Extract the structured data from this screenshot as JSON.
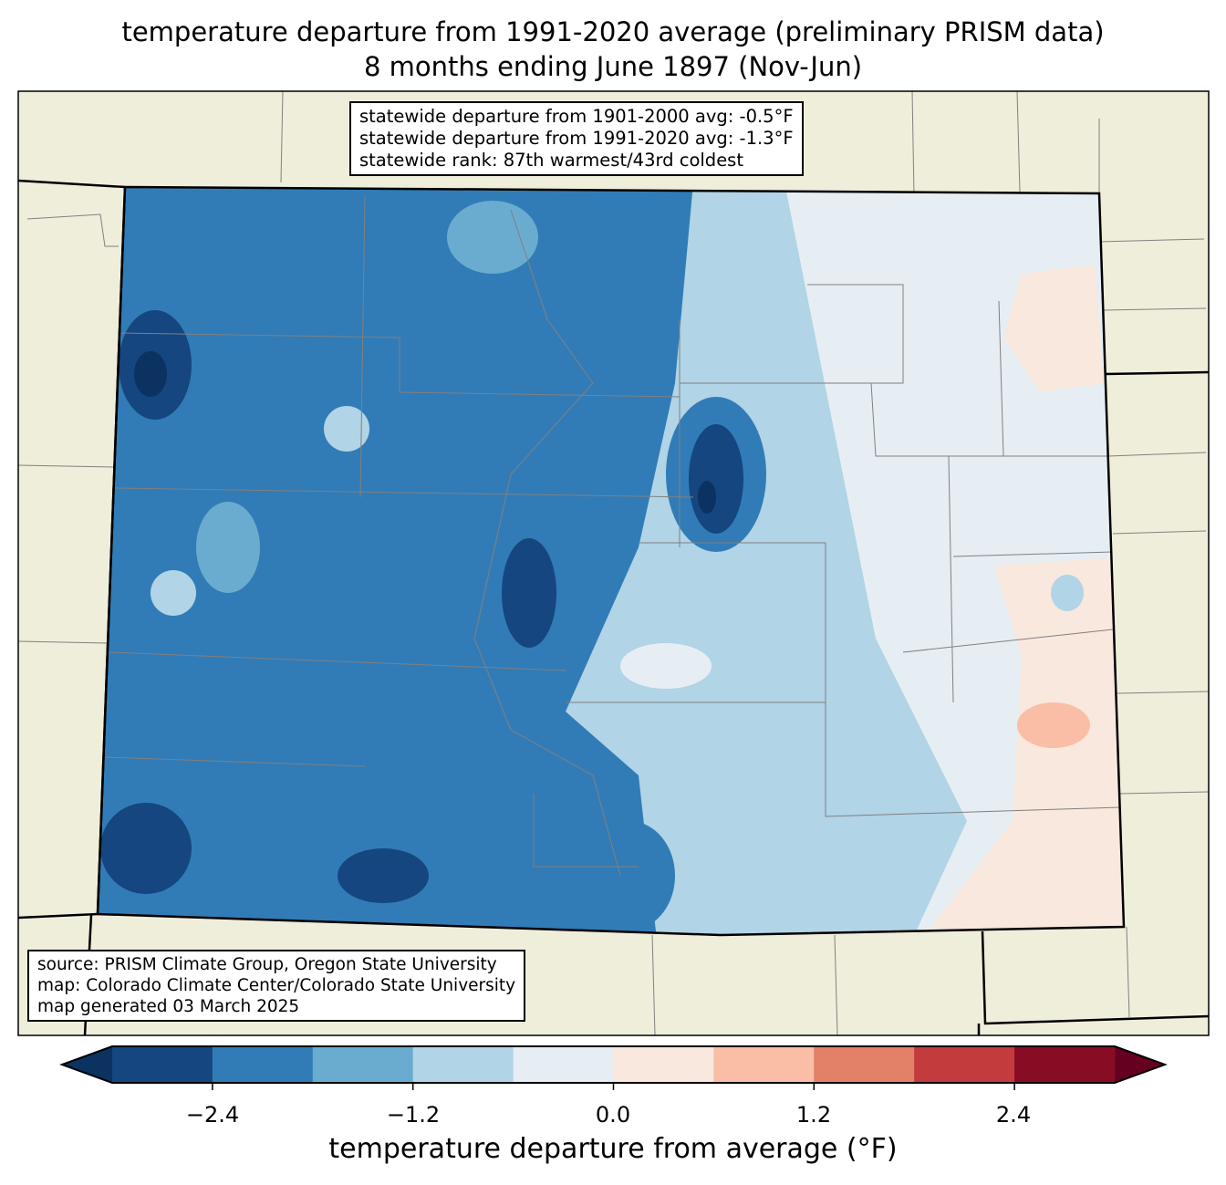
{
  "title": {
    "line1": "temperature departure from 1991-2020 average (preliminary PRISM data)",
    "line2": "8 months ending June 1897 (Nov-Jun)"
  },
  "stats_box": {
    "line1": "statewide departure from 1901-2000 avg: -0.5°F",
    "line2": "statewide departure from 1991-2020 avg: -1.3°F",
    "line3": "statewide rank: 87th warmest/43rd coldest"
  },
  "source_box": {
    "line1": "source: PRISM Climate Group, Oregon State University",
    "line2": "map: Colorado Climate Center/Colorado State University",
    "line3": "map generated 03 March 2025"
  },
  "colorbar": {
    "label": "temperature departure from average (°F)",
    "bounds": [
      -3.0,
      -2.4,
      -1.8,
      -1.2,
      -0.6,
      0.0,
      0.6,
      1.2,
      1.8,
      2.4,
      3.0
    ],
    "colors": [
      "#15467f",
      "#317cb7",
      "#6aacd0",
      "#b1d4e6",
      "#e6eef4",
      "#f8e8de",
      "#f9bea5",
      "#e28068",
      "#c33b3d",
      "#870c24"
    ],
    "under_color": "#0b3261",
    "over_color": "#660020",
    "ticks": [
      "−2.4",
      "−1.2",
      "0.0",
      "1.2",
      "2.4"
    ]
  },
  "map_colors": {
    "land": "#efeedb",
    "border": "#000000",
    "county": "#808080"
  }
}
